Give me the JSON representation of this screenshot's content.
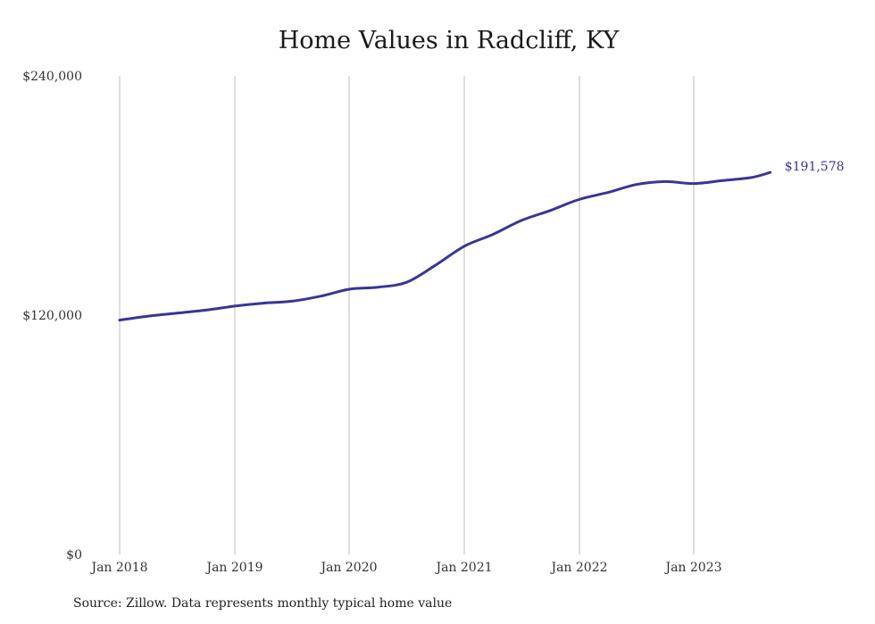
{
  "chart_data": {
    "type": "line",
    "title": "Home Values in Radcliff, KY",
    "source": "Source: Zillow. Data represents monthly typical home value",
    "ylim": [
      0,
      240000
    ],
    "yticks": [
      0,
      120000,
      240000
    ],
    "yticks_labels": [
      "$0",
      "$120,000",
      "$240,000"
    ],
    "xticks_labels": [
      "Jan 2018",
      "Jan 2019",
      "Jan 2020",
      "Jan 2021",
      "Jan 2022",
      "Jan 2023"
    ],
    "grid": "vertical",
    "end_label": "$191,578",
    "line_color": "#3a3596",
    "series": [
      {
        "x": [
          "2018-01",
          "2018-04",
          "2018-07",
          "2018-10",
          "2019-01",
          "2019-04",
          "2019-07",
          "2019-10",
          "2020-01",
          "2020-04",
          "2020-07",
          "2020-10",
          "2021-01",
          "2021-04",
          "2021-07",
          "2021-10",
          "2022-01",
          "2022-04",
          "2022-07",
          "2022-10",
          "2023-01",
          "2023-04",
          "2023-07",
          "2023-09"
        ],
        "values": [
          117500,
          119500,
          121000,
          122500,
          124500,
          126000,
          127000,
          129500,
          133000,
          134000,
          136500,
          145000,
          154500,
          160500,
          167500,
          172500,
          178000,
          181500,
          185500,
          187000,
          186000,
          187500,
          189000,
          191578
        ]
      }
    ]
  }
}
